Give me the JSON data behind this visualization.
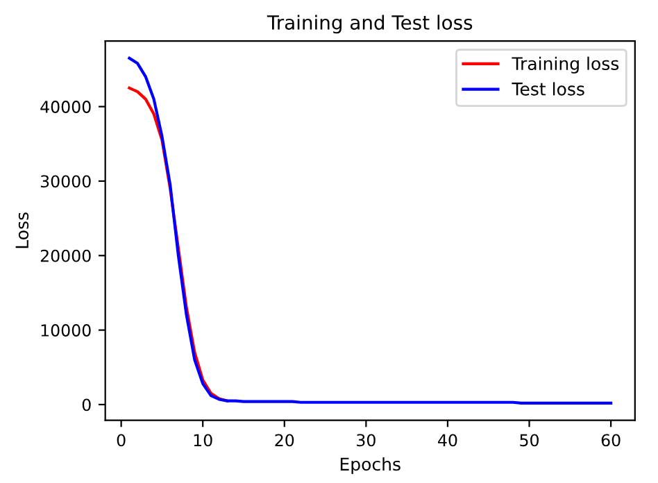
{
  "chart_data": {
    "type": "line",
    "title": "Training and Test loss",
    "xlabel": "Epochs",
    "ylabel": "Loss",
    "x": [
      1,
      2,
      3,
      4,
      5,
      6,
      7,
      8,
      9,
      10,
      11,
      12,
      13,
      14,
      15,
      16,
      17,
      18,
      19,
      20,
      21,
      22,
      23,
      24,
      25,
      26,
      27,
      28,
      29,
      30,
      31,
      32,
      33,
      34,
      35,
      36,
      37,
      38,
      39,
      40,
      41,
      42,
      43,
      44,
      45,
      46,
      47,
      48,
      49,
      50,
      51,
      52,
      53,
      54,
      55,
      56,
      57,
      58,
      59,
      60
    ],
    "series": [
      {
        "name": "Training loss",
        "color": "#ff0000",
        "values": [
          42500,
          42000,
          41000,
          39000,
          35500,
          29000,
          21000,
          13000,
          7000,
          3300,
          1500,
          800,
          500,
          null,
          null,
          null,
          null,
          null,
          null,
          null,
          null,
          null,
          null,
          null,
          null,
          null,
          null,
          null,
          null,
          null,
          null,
          null,
          null,
          null,
          null,
          null,
          null,
          null,
          null,
          null,
          null,
          null,
          null,
          null,
          null,
          null,
          null,
          null,
          null,
          null,
          null,
          null,
          null,
          null,
          null,
          null,
          null,
          null,
          null,
          null
        ]
      },
      {
        "name": "Test loss",
        "color": "#0000ff",
        "values": [
          46500,
          45800,
          44000,
          41000,
          36000,
          29500,
          20000,
          12000,
          6000,
          2800,
          1200,
          700,
          500,
          500,
          400,
          400,
          400,
          400,
          400,
          400,
          400,
          300,
          300,
          300,
          300,
          300,
          300,
          300,
          300,
          300,
          300,
          300,
          300,
          300,
          300,
          300,
          300,
          300,
          300,
          300,
          300,
          300,
          300,
          300,
          300,
          300,
          300,
          300,
          200,
          200,
          200,
          200,
          200,
          200,
          200,
          200,
          200,
          200,
          200,
          200
        ]
      }
    ],
    "xlim": [
      -1.95,
      62.95
    ],
    "xticks": [
      0,
      10,
      20,
      30,
      40,
      50,
      60
    ],
    "ylim": [
      -2100,
      48800
    ],
    "yticks": [
      0,
      10000,
      20000,
      30000,
      40000
    ],
    "legend": "top right",
    "grid": false
  }
}
